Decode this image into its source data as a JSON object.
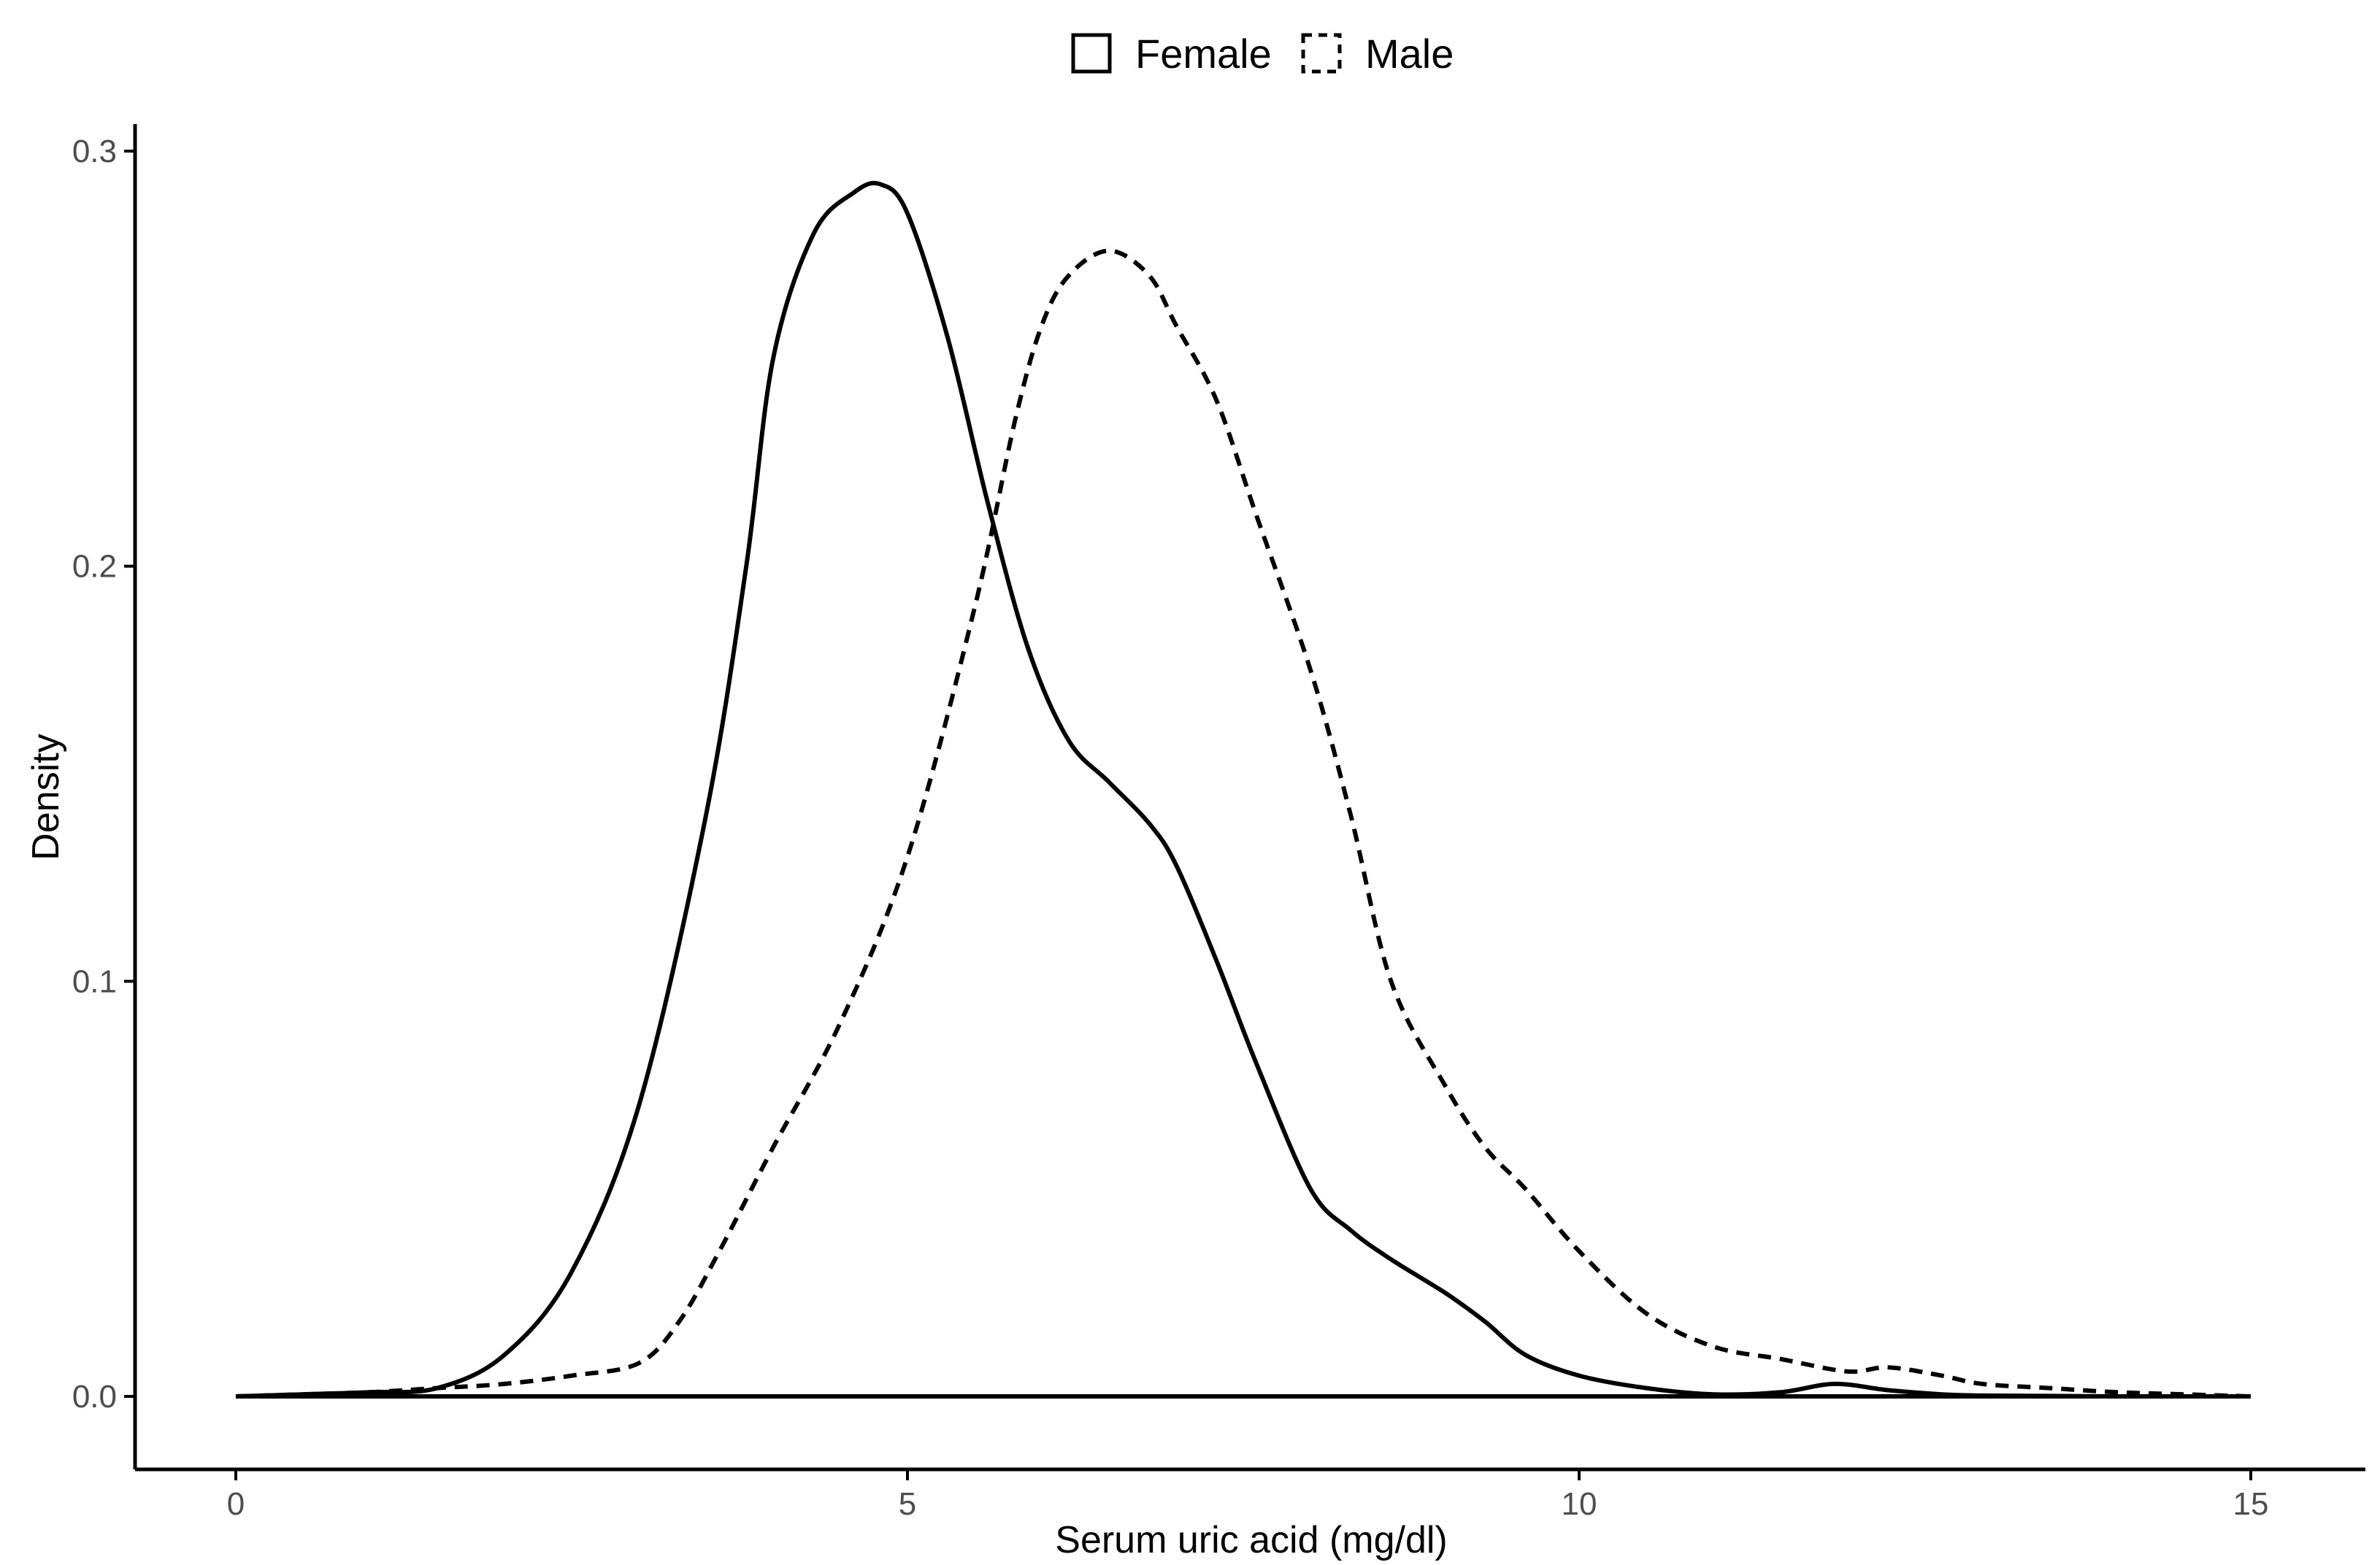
{
  "chart_data": {
    "type": "line",
    "title": "",
    "xlabel": "Serum uric acid (mg/dl)",
    "ylabel": "Density",
    "xlim": [
      0,
      15
    ],
    "ylim": [
      0,
      0.3
    ],
    "x_ticks": [
      0,
      5,
      10,
      15
    ],
    "x_tick_labels": [
      "0",
      "5",
      "10",
      "15"
    ],
    "y_ticks": [
      0,
      0.1,
      0.2,
      0.3
    ],
    "y_tick_labels": [
      "0.0",
      "0.1",
      "0.2",
      "0.3"
    ],
    "grid": false,
    "legend": {
      "position": "top",
      "entries": [
        "Female",
        "Male"
      ]
    },
    "series": [
      {
        "name": "Female",
        "line_style": "solid",
        "color": "#000000",
        "x": [
          0,
          0.5,
          1.0,
          1.5,
          2.0,
          2.5,
          3.0,
          3.5,
          3.8,
          4.0,
          4.3,
          4.6,
          4.8,
          5.0,
          5.3,
          5.6,
          5.9,
          6.2,
          6.5,
          6.8,
          7.0,
          7.3,
          7.6,
          8.0,
          8.3,
          8.6,
          9.0,
          9.3,
          9.6,
          10.0,
          10.5,
          11.0,
          11.5,
          11.9,
          12.3,
          12.7,
          13.0,
          13.5,
          14.0,
          14.5,
          15.0
        ],
        "y": [
          0,
          0.0005,
          0.001,
          0.002,
          0.01,
          0.03,
          0.07,
          0.14,
          0.2,
          0.25,
          0.28,
          0.29,
          0.292,
          0.285,
          0.255,
          0.215,
          0.18,
          0.158,
          0.148,
          0.138,
          0.128,
          0.105,
          0.08,
          0.05,
          0.04,
          0.033,
          0.025,
          0.018,
          0.01,
          0.005,
          0.002,
          0.0005,
          0.001,
          0.003,
          0.0015,
          0.0005,
          0.0002,
          0.0001,
          0,
          0,
          0
        ]
      },
      {
        "name": "Male",
        "line_style": "dashed",
        "color": "#000000",
        "x": [
          0,
          0.5,
          1.0,
          1.5,
          2.0,
          2.5,
          3.0,
          3.3,
          3.6,
          4.0,
          4.5,
          5.0,
          5.5,
          5.8,
          6.0,
          6.2,
          6.5,
          6.8,
          7.0,
          7.3,
          7.6,
          8.0,
          8.3,
          8.6,
          9.0,
          9.3,
          9.6,
          10.0,
          10.5,
          11.0,
          11.5,
          12.0,
          12.3,
          12.7,
          13.0,
          13.5,
          14.0,
          14.5,
          15.0
        ],
        "y": [
          0,
          0.0005,
          0.001,
          0.002,
          0.003,
          0.005,
          0.008,
          0.018,
          0.035,
          0.06,
          0.09,
          0.13,
          0.19,
          0.235,
          0.258,
          0.27,
          0.276,
          0.27,
          0.258,
          0.24,
          0.212,
          0.175,
          0.14,
          0.1,
          0.075,
          0.06,
          0.05,
          0.035,
          0.02,
          0.012,
          0.009,
          0.006,
          0.007,
          0.005,
          0.003,
          0.002,
          0.001,
          0.0005,
          0
        ]
      }
    ]
  }
}
